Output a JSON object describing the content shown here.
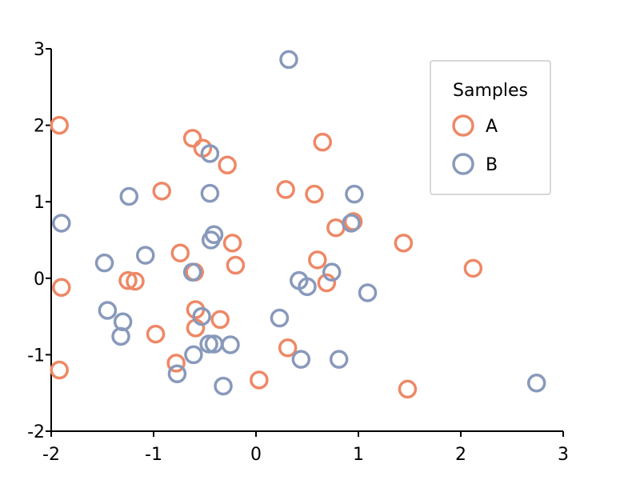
{
  "chart_data": {
    "type": "scatter",
    "title": "",
    "xlabel": "",
    "ylabel": "",
    "xlim": [
      -2,
      3
    ],
    "ylim": [
      -2,
      3
    ],
    "x_ticks": [
      -2,
      -1,
      0,
      1,
      2,
      3
    ],
    "y_ticks": [
      -2,
      -1,
      0,
      1,
      2,
      3
    ],
    "grid": false,
    "legend": {
      "title": "Samples",
      "placement": "top-right"
    },
    "series": [
      {
        "name": "A",
        "color": "#ee8866",
        "marker": "hollow-circle",
        "points": [
          [
            -1.92,
            2.0
          ],
          [
            -1.9,
            -0.12
          ],
          [
            -1.92,
            -1.2
          ],
          [
            -1.25,
            -0.03
          ],
          [
            -1.18,
            -0.04
          ],
          [
            -0.92,
            1.14
          ],
          [
            -0.98,
            -0.73
          ],
          [
            -0.78,
            -1.11
          ],
          [
            -0.74,
            0.33
          ],
          [
            -0.62,
            1.83
          ],
          [
            -0.52,
            1.7
          ],
          [
            -0.6,
            0.08
          ],
          [
            -0.59,
            -0.41
          ],
          [
            -0.59,
            -0.65
          ],
          [
            -0.35,
            -0.54
          ],
          [
            -0.28,
            1.48
          ],
          [
            -0.23,
            0.46
          ],
          [
            -0.2,
            0.17
          ],
          [
            0.03,
            -1.33
          ],
          [
            0.29,
            1.16
          ],
          [
            0.31,
            -0.91
          ],
          [
            0.57,
            1.1
          ],
          [
            0.6,
            0.24
          ],
          [
            0.65,
            1.78
          ],
          [
            0.69,
            -0.06
          ],
          [
            0.78,
            0.66
          ],
          [
            0.95,
            0.74
          ],
          [
            1.44,
            0.46
          ],
          [
            1.48,
            -1.45
          ],
          [
            2.12,
            0.13
          ]
        ]
      },
      {
        "name": "B",
        "color": "#8899bb",
        "marker": "hollow-circle",
        "points": [
          [
            0.32,
            2.86
          ],
          [
            -1.9,
            0.72
          ],
          [
            -1.24,
            1.07
          ],
          [
            -1.48,
            0.2
          ],
          [
            -1.45,
            -0.42
          ],
          [
            -1.3,
            -0.57
          ],
          [
            -1.32,
            -0.76
          ],
          [
            -1.08,
            0.3
          ],
          [
            -0.77,
            -1.25
          ],
          [
            -0.62,
            0.08
          ],
          [
            -0.61,
            -1.0
          ],
          [
            -0.53,
            -0.5
          ],
          [
            -0.45,
            1.63
          ],
          [
            -0.45,
            1.11
          ],
          [
            -0.44,
            0.5
          ],
          [
            -0.41,
            0.57
          ],
          [
            -0.46,
            -0.86
          ],
          [
            -0.41,
            -0.86
          ],
          [
            -0.25,
            -0.87
          ],
          [
            -0.32,
            -1.41
          ],
          [
            0.23,
            -0.52
          ],
          [
            0.42,
            -0.03
          ],
          [
            0.5,
            -0.11
          ],
          [
            0.44,
            -1.06
          ],
          [
            0.74,
            0.08
          ],
          [
            0.81,
            -1.06
          ],
          [
            0.93,
            0.72
          ],
          [
            0.96,
            1.1
          ],
          [
            1.09,
            -0.19
          ],
          [
            2.74,
            -1.37
          ]
        ]
      }
    ]
  }
}
